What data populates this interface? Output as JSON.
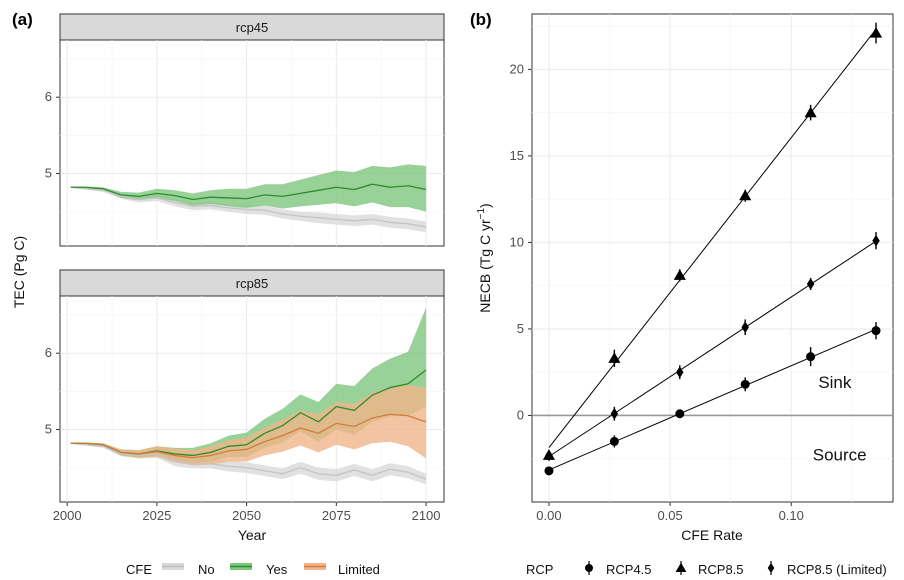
{
  "panel_a": {
    "label": "(a)",
    "ylabel": "TEC (Pg C)",
    "xlabel": "Year",
    "legend": {
      "title": "CFE",
      "items": [
        {
          "label": "No",
          "color": "#bdbdbd"
        },
        {
          "label": "Yes",
          "color": "#4daf4a"
        },
        {
          "label": "Limited",
          "color": "#e08a4a"
        }
      ]
    }
  },
  "panel_b": {
    "label": "(b)",
    "ylabel": "NECB (Tg C yr",
    "ylabel_sup": "−1",
    "ylabel_end": ")",
    "xlabel": "CFE Rate",
    "annotations": {
      "sink": "Sink",
      "source": "Source"
    },
    "legend": {
      "title": "RCP",
      "items": [
        {
          "label": "RCP4.5",
          "shape": "circle"
        },
        {
          "label": "RCP8.5",
          "shape": "triangle"
        },
        {
          "label": "RCP8.5 (Limited)",
          "shape": "diamond"
        }
      ]
    }
  },
  "chart_data": [
    {
      "type": "area",
      "facet": "rcp45",
      "x_range": [
        1998,
        2105
      ],
      "y_range": [
        4.05,
        6.75
      ],
      "x_ticks": [
        2000,
        2025,
        2050,
        2075,
        2100
      ],
      "y_ticks": [
        5,
        6
      ],
      "grid": true,
      "series": [
        {
          "name": "No",
          "color": "#bdbdbd",
          "x": [
            2001,
            2005,
            2010,
            2015,
            2020,
            2025,
            2030,
            2035,
            2040,
            2045,
            2050,
            2055,
            2060,
            2065,
            2070,
            2075,
            2080,
            2085,
            2090,
            2095,
            2100
          ],
          "y": [
            4.82,
            4.8,
            4.78,
            4.7,
            4.66,
            4.68,
            4.62,
            4.57,
            4.58,
            4.55,
            4.53,
            4.52,
            4.47,
            4.44,
            4.42,
            4.4,
            4.38,
            4.4,
            4.36,
            4.34,
            4.3
          ],
          "lower": [
            4.81,
            4.79,
            4.76,
            4.67,
            4.62,
            4.64,
            4.57,
            4.52,
            4.53,
            4.5,
            4.47,
            4.46,
            4.41,
            4.38,
            4.35,
            4.33,
            4.31,
            4.33,
            4.29,
            4.27,
            4.23
          ],
          "upper": [
            4.83,
            4.81,
            4.8,
            4.73,
            4.7,
            4.72,
            4.67,
            4.62,
            4.63,
            4.6,
            4.59,
            4.58,
            4.53,
            4.5,
            4.49,
            4.47,
            4.45,
            4.47,
            4.43,
            4.41,
            4.37
          ]
        },
        {
          "name": "Yes",
          "color": "#4daf4a",
          "x": [
            2001,
            2005,
            2010,
            2015,
            2020,
            2025,
            2030,
            2035,
            2040,
            2045,
            2050,
            2055,
            2060,
            2065,
            2070,
            2075,
            2080,
            2085,
            2090,
            2095,
            2100
          ],
          "y": [
            4.82,
            4.82,
            4.8,
            4.72,
            4.7,
            4.74,
            4.71,
            4.66,
            4.69,
            4.68,
            4.67,
            4.72,
            4.7,
            4.74,
            4.78,
            4.82,
            4.79,
            4.86,
            4.82,
            4.84,
            4.79
          ],
          "lower": [
            4.81,
            4.81,
            4.78,
            4.68,
            4.65,
            4.68,
            4.64,
            4.58,
            4.6,
            4.57,
            4.55,
            4.58,
            4.54,
            4.57,
            4.59,
            4.61,
            4.57,
            4.62,
            4.56,
            4.56,
            4.5
          ],
          "upper": [
            4.83,
            4.83,
            4.82,
            4.76,
            4.75,
            4.8,
            4.78,
            4.74,
            4.78,
            4.8,
            4.8,
            4.86,
            4.86,
            4.92,
            4.98,
            5.04,
            5.02,
            5.1,
            5.08,
            5.12,
            5.1
          ]
        }
      ]
    },
    {
      "type": "area",
      "facet": "rcp85",
      "x_range": [
        1998,
        2105
      ],
      "y_range": [
        4.05,
        6.75
      ],
      "x_ticks": [
        2000,
        2025,
        2050,
        2075,
        2100
      ],
      "y_ticks": [
        5,
        6
      ],
      "grid": true,
      "series": [
        {
          "name": "No",
          "color": "#bdbdbd",
          "x": [
            2001,
            2005,
            2010,
            2015,
            2020,
            2025,
            2030,
            2035,
            2040,
            2045,
            2050,
            2055,
            2060,
            2065,
            2070,
            2075,
            2080,
            2085,
            2090,
            2095,
            2100
          ],
          "y": [
            4.82,
            4.8,
            4.78,
            4.68,
            4.66,
            4.68,
            4.58,
            4.55,
            4.55,
            4.52,
            4.5,
            4.46,
            4.42,
            4.5,
            4.42,
            4.4,
            4.47,
            4.4,
            4.48,
            4.44,
            4.35
          ],
          "lower": [
            4.81,
            4.79,
            4.76,
            4.65,
            4.62,
            4.63,
            4.52,
            4.49,
            4.49,
            4.45,
            4.43,
            4.39,
            4.35,
            4.42,
            4.34,
            4.32,
            4.39,
            4.32,
            4.4,
            4.36,
            4.28
          ],
          "upper": [
            4.83,
            4.81,
            4.8,
            4.71,
            4.7,
            4.73,
            4.64,
            4.61,
            4.61,
            4.59,
            4.57,
            4.53,
            4.49,
            4.58,
            4.5,
            4.48,
            4.55,
            4.48,
            4.56,
            4.52,
            4.42
          ]
        },
        {
          "name": "Yes",
          "color": "#4daf4a",
          "x": [
            2001,
            2005,
            2010,
            2015,
            2020,
            2025,
            2030,
            2035,
            2040,
            2045,
            2050,
            2055,
            2060,
            2065,
            2070,
            2075,
            2080,
            2085,
            2090,
            2095,
            2100
          ],
          "y": [
            4.82,
            4.82,
            4.8,
            4.7,
            4.68,
            4.72,
            4.68,
            4.66,
            4.7,
            4.78,
            4.8,
            4.95,
            5.05,
            5.22,
            5.1,
            5.3,
            5.25,
            5.45,
            5.55,
            5.6,
            5.78
          ],
          "lower": [
            4.81,
            4.81,
            4.78,
            4.66,
            4.63,
            4.66,
            4.6,
            4.56,
            4.58,
            4.64,
            4.64,
            4.76,
            4.83,
            4.98,
            4.84,
            5.0,
            4.93,
            5.1,
            5.17,
            5.18,
            5.3
          ],
          "upper": [
            4.83,
            4.83,
            4.82,
            4.74,
            4.73,
            4.78,
            4.76,
            4.76,
            4.82,
            4.92,
            4.96,
            5.14,
            5.27,
            5.46,
            5.36,
            5.6,
            5.57,
            5.8,
            5.93,
            6.02,
            6.6
          ]
        },
        {
          "name": "Limited",
          "color": "#e08a4a",
          "x": [
            2001,
            2005,
            2010,
            2015,
            2020,
            2025,
            2030,
            2035,
            2040,
            2045,
            2050,
            2055,
            2060,
            2065,
            2070,
            2075,
            2080,
            2085,
            2090,
            2095,
            2100
          ],
          "y": [
            4.82,
            4.82,
            4.8,
            4.7,
            4.68,
            4.71,
            4.66,
            4.63,
            4.66,
            4.72,
            4.74,
            4.84,
            4.92,
            5.02,
            4.95,
            5.08,
            5.04,
            5.15,
            5.2,
            5.18,
            5.1
          ],
          "lower": [
            4.81,
            4.81,
            4.78,
            4.66,
            4.63,
            4.64,
            4.57,
            4.53,
            4.54,
            4.58,
            4.58,
            4.66,
            4.71,
            4.79,
            4.7,
            4.8,
            4.74,
            4.82,
            4.84,
            4.78,
            4.62
          ],
          "upper": [
            4.83,
            4.83,
            4.82,
            4.74,
            4.73,
            4.78,
            4.75,
            4.73,
            4.78,
            4.86,
            4.9,
            5.02,
            5.13,
            5.25,
            5.2,
            5.36,
            5.34,
            5.48,
            5.56,
            5.58,
            5.55
          ]
        }
      ]
    },
    {
      "type": "scatter",
      "x_range": [
        -0.007,
        0.142
      ],
      "y_range": [
        -5.0,
        23.2
      ],
      "x_ticks": [
        0.0,
        0.05,
        0.1
      ],
      "x_tick_labels": [
        "0.00",
        "0.05",
        "0.10"
      ],
      "y_ticks": [
        0,
        5,
        10,
        15,
        20
      ],
      "grid": true,
      "reference_line_y": 0,
      "series": [
        {
          "name": "RCP4.5",
          "shape": "circle",
          "x": [
            0.0,
            0.027,
            0.054,
            0.081,
            0.108,
            0.135
          ],
          "y": [
            -3.2,
            -1.5,
            0.1,
            1.8,
            3.4,
            4.9
          ],
          "err": [
            0.25,
            0.35,
            0.25,
            0.4,
            0.55,
            0.5
          ]
        },
        {
          "name": "RCP8.5",
          "shape": "triangle",
          "x": [
            0.0,
            0.027,
            0.054,
            0.081,
            0.108,
            0.135
          ],
          "y": [
            -2.3,
            3.3,
            8.1,
            12.7,
            17.5,
            22.1
          ],
          "err": [
            0.3,
            0.5,
            0.35,
            0.35,
            0.45,
            0.6
          ]
        },
        {
          "name": "RCP8.5 (Limited)",
          "shape": "diamond",
          "x": [
            0.0,
            0.027,
            0.054,
            0.081,
            0.108,
            0.135
          ],
          "y": [
            -2.3,
            0.1,
            2.5,
            5.1,
            7.6,
            10.1
          ],
          "err": [
            0.3,
            0.4,
            0.4,
            0.45,
            0.35,
            0.5
          ]
        }
      ]
    }
  ]
}
